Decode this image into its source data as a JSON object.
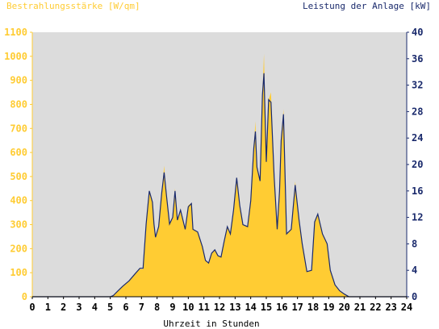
{
  "chart_data": {
    "type": "area",
    "title_left": "Bestrahlungsstärke [W/qm]",
    "title_right": "Leistung der Anlage [kW]",
    "xlabel": "Uhrzeit in Stunden",
    "x_ticks": [
      "0",
      "1",
      "2",
      "3",
      "4",
      "5",
      "6",
      "7",
      "8",
      "9",
      "10",
      "11",
      "12",
      "13",
      "14",
      "15",
      "16",
      "17",
      "18",
      "19",
      "20",
      "21",
      "22",
      "23",
      "24"
    ],
    "y_left_ticks": [
      "0",
      "100",
      "200",
      "300",
      "400",
      "500",
      "600",
      "700",
      "800",
      "900",
      "1000",
      "1100"
    ],
    "y_right_ticks": [
      "0",
      "4",
      "8",
      "12",
      "16",
      "20",
      "24",
      "28",
      "32",
      "36",
      "40"
    ],
    "xlim": [
      0,
      24
    ],
    "ylim_left": [
      0,
      1100
    ],
    "ylim_right": [
      0,
      40
    ],
    "grid": false,
    "colors": {
      "plot_bg": "#dcdcdc",
      "irradiance_fill": "#ffcc33",
      "power_line": "#1a2a6c",
      "left_axis": "#ffcc33",
      "right_axis": "#1a2a6c",
      "bottom_axis": "#000000"
    },
    "series": [
      {
        "key": "irradiance",
        "axis": "left",
        "points": [
          [
            0,
            0
          ],
          [
            5.0,
            0
          ],
          [
            5.2,
            5
          ],
          [
            5.5,
            25
          ],
          [
            5.8,
            45
          ],
          [
            6.2,
            65
          ],
          [
            6.6,
            95
          ],
          [
            6.9,
            115
          ],
          [
            7.1,
            115
          ],
          [
            7.3,
            300
          ],
          [
            7.5,
            440
          ],
          [
            7.7,
            390
          ],
          [
            7.8,
            300
          ],
          [
            7.9,
            245
          ],
          [
            8.1,
            290
          ],
          [
            8.3,
            430
          ],
          [
            8.45,
            545
          ],
          [
            8.6,
            420
          ],
          [
            8.8,
            300
          ],
          [
            9.0,
            330
          ],
          [
            9.15,
            450
          ],
          [
            9.3,
            320
          ],
          [
            9.5,
            360
          ],
          [
            9.8,
            280
          ],
          [
            10.0,
            380
          ],
          [
            10.2,
            390
          ],
          [
            10.3,
            280
          ],
          [
            10.6,
            270
          ],
          [
            10.9,
            210
          ],
          [
            11.1,
            150
          ],
          [
            11.3,
            140
          ],
          [
            11.5,
            180
          ],
          [
            11.7,
            195
          ],
          [
            11.9,
            170
          ],
          [
            12.1,
            165
          ],
          [
            12.3,
            230
          ],
          [
            12.5,
            290
          ],
          [
            12.7,
            260
          ],
          [
            12.9,
            360
          ],
          [
            13.1,
            490
          ],
          [
            13.3,
            380
          ],
          [
            13.5,
            300
          ],
          [
            13.8,
            290
          ],
          [
            14.0,
            400
          ],
          [
            14.2,
            620
          ],
          [
            14.3,
            730
          ],
          [
            14.4,
            540
          ],
          [
            14.6,
            480
          ],
          [
            14.75,
            840
          ],
          [
            14.85,
            1010
          ],
          [
            15.0,
            560
          ],
          [
            15.15,
            820
          ],
          [
            15.3,
            850
          ],
          [
            15.5,
            500
          ],
          [
            15.7,
            280
          ],
          [
            15.85,
            440
          ],
          [
            15.95,
            650
          ],
          [
            16.1,
            780
          ],
          [
            16.3,
            260
          ],
          [
            16.6,
            280
          ],
          [
            16.85,
            480
          ],
          [
            17.1,
            320
          ],
          [
            17.3,
            220
          ],
          [
            17.6,
            105
          ],
          [
            17.9,
            110
          ],
          [
            18.1,
            310
          ],
          [
            18.3,
            345
          ],
          [
            18.6,
            260
          ],
          [
            18.9,
            220
          ],
          [
            19.1,
            110
          ],
          [
            19.4,
            50
          ],
          [
            19.7,
            25
          ],
          [
            20.0,
            10
          ],
          [
            20.3,
            0
          ],
          [
            24,
            0
          ]
        ]
      },
      {
        "key": "power",
        "axis": "right",
        "points": [
          [
            0,
            0
          ],
          [
            5.0,
            0
          ],
          [
            5.2,
            0.2
          ],
          [
            5.5,
            0.9
          ],
          [
            5.8,
            1.6
          ],
          [
            6.2,
            2.4
          ],
          [
            6.6,
            3.5
          ],
          [
            6.9,
            4.3
          ],
          [
            7.1,
            4.3
          ],
          [
            7.3,
            11.0
          ],
          [
            7.5,
            16.0
          ],
          [
            7.7,
            14.3
          ],
          [
            7.8,
            11.0
          ],
          [
            7.9,
            9.0
          ],
          [
            8.1,
            10.6
          ],
          [
            8.3,
            15.8
          ],
          [
            8.45,
            18.8
          ],
          [
            8.6,
            15.3
          ],
          [
            8.8,
            11.0
          ],
          [
            9.0,
            12.0
          ],
          [
            9.15,
            16.0
          ],
          [
            9.3,
            11.6
          ],
          [
            9.5,
            13.1
          ],
          [
            9.8,
            10.2
          ],
          [
            10.0,
            13.6
          ],
          [
            10.2,
            14.1
          ],
          [
            10.3,
            10.2
          ],
          [
            10.6,
            9.8
          ],
          [
            10.9,
            7.6
          ],
          [
            11.1,
            5.5
          ],
          [
            11.3,
            5.1
          ],
          [
            11.5,
            6.6
          ],
          [
            11.7,
            7.1
          ],
          [
            11.9,
            6.2
          ],
          [
            12.1,
            6.0
          ],
          [
            12.3,
            8.4
          ],
          [
            12.5,
            10.6
          ],
          [
            12.7,
            9.5
          ],
          [
            12.9,
            13.1
          ],
          [
            13.1,
            18.0
          ],
          [
            13.3,
            13.8
          ],
          [
            13.5,
            10.9
          ],
          [
            13.8,
            10.6
          ],
          [
            14.0,
            14.5
          ],
          [
            14.2,
            22.5
          ],
          [
            14.3,
            25.0
          ],
          [
            14.4,
            19.6
          ],
          [
            14.6,
            17.5
          ],
          [
            14.75,
            30.5
          ],
          [
            14.85,
            33.8
          ],
          [
            15.0,
            20.4
          ],
          [
            15.15,
            29.8
          ],
          [
            15.3,
            29.4
          ],
          [
            15.5,
            18.2
          ],
          [
            15.7,
            10.2
          ],
          [
            15.85,
            16.0
          ],
          [
            15.95,
            23.6
          ],
          [
            16.1,
            27.6
          ],
          [
            16.3,
            9.5
          ],
          [
            16.6,
            10.2
          ],
          [
            16.85,
            16.9
          ],
          [
            17.1,
            11.6
          ],
          [
            17.3,
            8.0
          ],
          [
            17.6,
            3.8
          ],
          [
            17.9,
            4.0
          ],
          [
            18.1,
            11.3
          ],
          [
            18.3,
            12.5
          ],
          [
            18.6,
            9.5
          ],
          [
            18.9,
            8.0
          ],
          [
            19.1,
            4.0
          ],
          [
            19.4,
            1.8
          ],
          [
            19.7,
            0.9
          ],
          [
            20.0,
            0.4
          ],
          [
            20.3,
            0
          ],
          [
            24,
            0
          ]
        ]
      }
    ]
  }
}
